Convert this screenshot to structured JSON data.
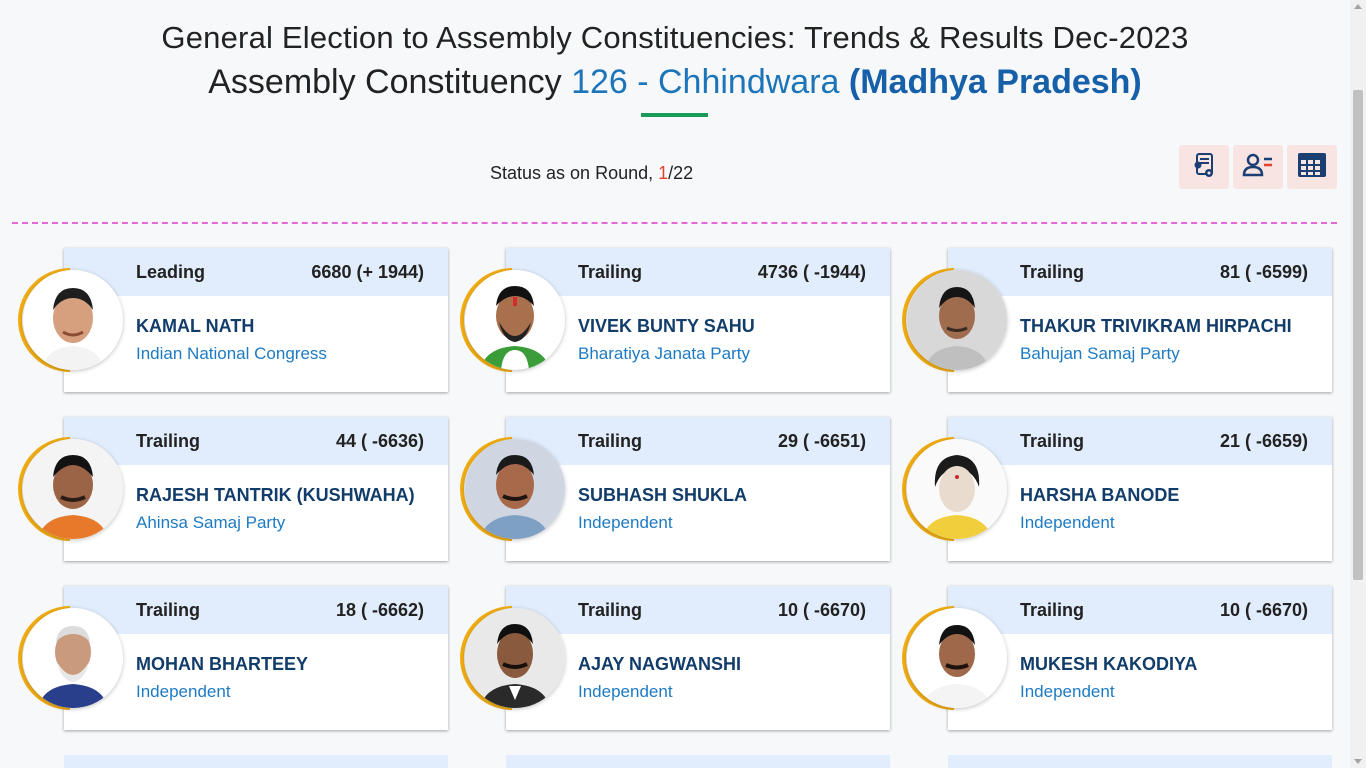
{
  "header": {
    "title_line1": "General Election to Assembly Constituencies: Trends & Results Dec-2023",
    "title_line2_prefix": "Assembly Constituency",
    "ac_number_name": "126 - Chhindwara",
    "state": "(Madhya Pradesh)"
  },
  "status": {
    "label": "Status as on Round,",
    "current_round": "1",
    "total_rounds": "/22"
  },
  "toolbar": {
    "icons": [
      "document-settings-icon",
      "candidate-list-icon",
      "table-view-icon"
    ]
  },
  "candidates": [
    {
      "status": "Leading",
      "votes": "6680 (+ 1944)",
      "name": "KAMAL NATH",
      "party": "Indian National Congress"
    },
    {
      "status": "Trailing",
      "votes": "4736 ( -1944)",
      "name": "VIVEK BUNTY SAHU",
      "party": "Bharatiya Janata Party"
    },
    {
      "status": "Trailing",
      "votes": "81 ( -6599)",
      "name": "THAKUR TRIVIKRAM HIRPACHI",
      "party": "Bahujan Samaj Party"
    },
    {
      "status": "Trailing",
      "votes": "44 ( -6636)",
      "name": "RAJESH TANTRIK (KUSHWAHA)",
      "party": "Ahinsa Samaj Party"
    },
    {
      "status": "Trailing",
      "votes": "29 ( -6651)",
      "name": "SUBHASH SHUKLA",
      "party": "Independent"
    },
    {
      "status": "Trailing",
      "votes": "21 ( -6659)",
      "name": "HARSHA BANODE",
      "party": "Independent"
    },
    {
      "status": "Trailing",
      "votes": "18 ( -6662)",
      "name": "MOHAN BHARTEEY",
      "party": "Independent"
    },
    {
      "status": "Trailing",
      "votes": "10 ( -6670)",
      "name": "AJAY NAGWANSHI",
      "party": "Independent"
    },
    {
      "status": "Trailing",
      "votes": "10 ( -6670)",
      "name": "MUKESH KAKODIYA",
      "party": "Independent"
    }
  ],
  "colors": {
    "accent_blue": "#1d75b9",
    "ring_yellow": "#f1ad14",
    "card_header": "#e1edfc",
    "divider": "#e36ad6",
    "underline_green": "#1a9b5a"
  }
}
